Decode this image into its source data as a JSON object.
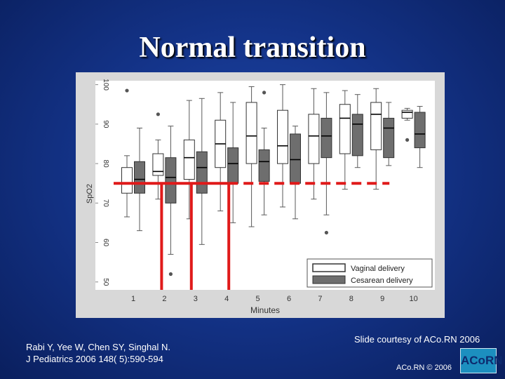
{
  "slide": {
    "title": "Normal transition",
    "citation_line1": "Rabi Y, Yee W, Chen SY, Singhal N.",
    "citation_line2": "J Pediatrics 2006 148( 5):590-594",
    "courtesy": "Slide courtesy of ACo.RN 2006",
    "copyright": "ACo.RN © 2006",
    "logo_text": "ACoRN"
  },
  "colors": {
    "vaginal_fill": "#ffffff",
    "cesarean_fill": "#6e6e6e",
    "whisker": "#5a5a5a",
    "threshold": "#e01a1a",
    "plot_bg": "#ffffff"
  },
  "chart_data": {
    "type": "box",
    "xlabel": "Minutes",
    "ylabel": "SpO2",
    "categories": [
      "1",
      "2",
      "3",
      "4",
      "5",
      "6",
      "7",
      "8",
      "9",
      "10"
    ],
    "yticks": [
      "50",
      "60",
      "70",
      "80",
      "90",
      "100"
    ],
    "ylim": [
      48,
      101
    ],
    "legend": {
      "position": "bottom-right",
      "entries": [
        "Vaginal delivery",
        "Cesarean delivery"
      ]
    },
    "series": [
      {
        "name": "Vaginal delivery",
        "boxes": [
          {
            "low": 66.5,
            "q1": 72.5,
            "median": 75,
            "q3": 79,
            "high": 82,
            "outliers": [
              98.5
            ]
          },
          {
            "low": 71,
            "q1": 77,
            "median": 78,
            "q3": 82.5,
            "high": 86,
            "outliers": [
              92.5
            ]
          },
          {
            "low": 66,
            "q1": 76,
            "median": 81.5,
            "q3": 86,
            "high": 96,
            "outliers": []
          },
          {
            "low": 68,
            "q1": 79,
            "median": 85,
            "q3": 91,
            "high": 98,
            "outliers": []
          },
          {
            "low": 64,
            "q1": 80,
            "median": 87,
            "q3": 95.5,
            "high": 99.5,
            "outliers": []
          },
          {
            "low": 69,
            "q1": 80,
            "median": 84.5,
            "q3": 93.5,
            "high": 100,
            "outliers": []
          },
          {
            "low": 71,
            "q1": 80,
            "median": 87,
            "q3": 92.5,
            "high": 99,
            "outliers": []
          },
          {
            "low": 73.5,
            "q1": 82.5,
            "median": 91.5,
            "q3": 95,
            "high": 98.5,
            "outliers": []
          },
          {
            "low": 73.5,
            "q1": 83.5,
            "median": 92.5,
            "q3": 95.5,
            "high": 99,
            "outliers": []
          },
          {
            "low": 91,
            "q1": 91.5,
            "median": 93,
            "q3": 93.5,
            "high": 94,
            "outliers": [
              86
            ]
          }
        ]
      },
      {
        "name": "Cesarean delivery",
        "boxes": [
          {
            "low": 63,
            "q1": 72.5,
            "median": 76,
            "q3": 80.5,
            "high": 89,
            "outliers": []
          },
          {
            "low": 57,
            "q1": 70,
            "median": 76.5,
            "q3": 81.5,
            "high": 89.5,
            "outliers": [
              52
            ]
          },
          {
            "low": 59.5,
            "q1": 72.5,
            "median": 79,
            "q3": 83,
            "high": 96.5,
            "outliers": []
          },
          {
            "low": 65,
            "q1": 75,
            "median": 80,
            "q3": 84,
            "high": 95.5,
            "outliers": []
          },
          {
            "low": 67,
            "q1": 75.5,
            "median": 80.5,
            "q3": 83.5,
            "high": 89,
            "outliers": [
              98
            ]
          },
          {
            "low": 66,
            "q1": 75,
            "median": 81,
            "q3": 87.5,
            "high": 89.5,
            "outliers": []
          },
          {
            "low": 67,
            "q1": 81.5,
            "median": 87,
            "q3": 91.5,
            "high": 98,
            "outliers": [
              62.5
            ]
          },
          {
            "low": 79,
            "q1": 82,
            "median": 90,
            "q3": 92.5,
            "high": 97.5,
            "outliers": []
          },
          {
            "low": 79.5,
            "q1": 81.5,
            "median": 89,
            "q3": 91.5,
            "high": 95.5,
            "outliers": []
          },
          {
            "low": 79,
            "q1": 84,
            "median": 87.5,
            "q3": 93,
            "high": 94.5,
            "outliers": []
          }
        ]
      }
    ],
    "annotations": {
      "threshold_spo2": 75,
      "threshold_end_minute": 9,
      "vertical_markers_minutes": [
        2,
        3,
        4
      ]
    }
  }
}
